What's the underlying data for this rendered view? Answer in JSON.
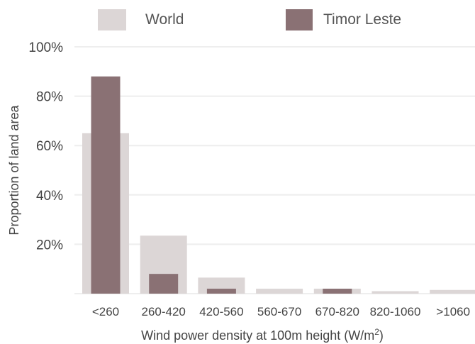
{
  "chart_data": {
    "type": "bar",
    "categories": [
      "<260",
      "260-420",
      "420-560",
      "560-670",
      "670-820",
      "820-1060",
      ">1060"
    ],
    "series": [
      {
        "name": "World",
        "values": [
          65,
          23.5,
          6.5,
          2,
          2,
          1,
          1.5
        ],
        "color": "#dcd6d6"
      },
      {
        "name": "Timor Leste",
        "values": [
          88,
          8,
          2,
          0,
          2,
          0,
          0
        ],
        "color": "#8a7174"
      }
    ],
    "xlabel": "Wind power density at 100m height (W/m",
    "xlabel_sup": "2",
    "xlabel_end": ")",
    "ylabel": "Proportion of land area",
    "yticks": [
      "20%",
      "40%",
      "60%",
      "80%",
      "100%"
    ],
    "ytick_values": [
      20,
      40,
      60,
      80,
      100
    ],
    "ylim": [
      0,
      100
    ],
    "grid": true,
    "legend_position": "top"
  }
}
